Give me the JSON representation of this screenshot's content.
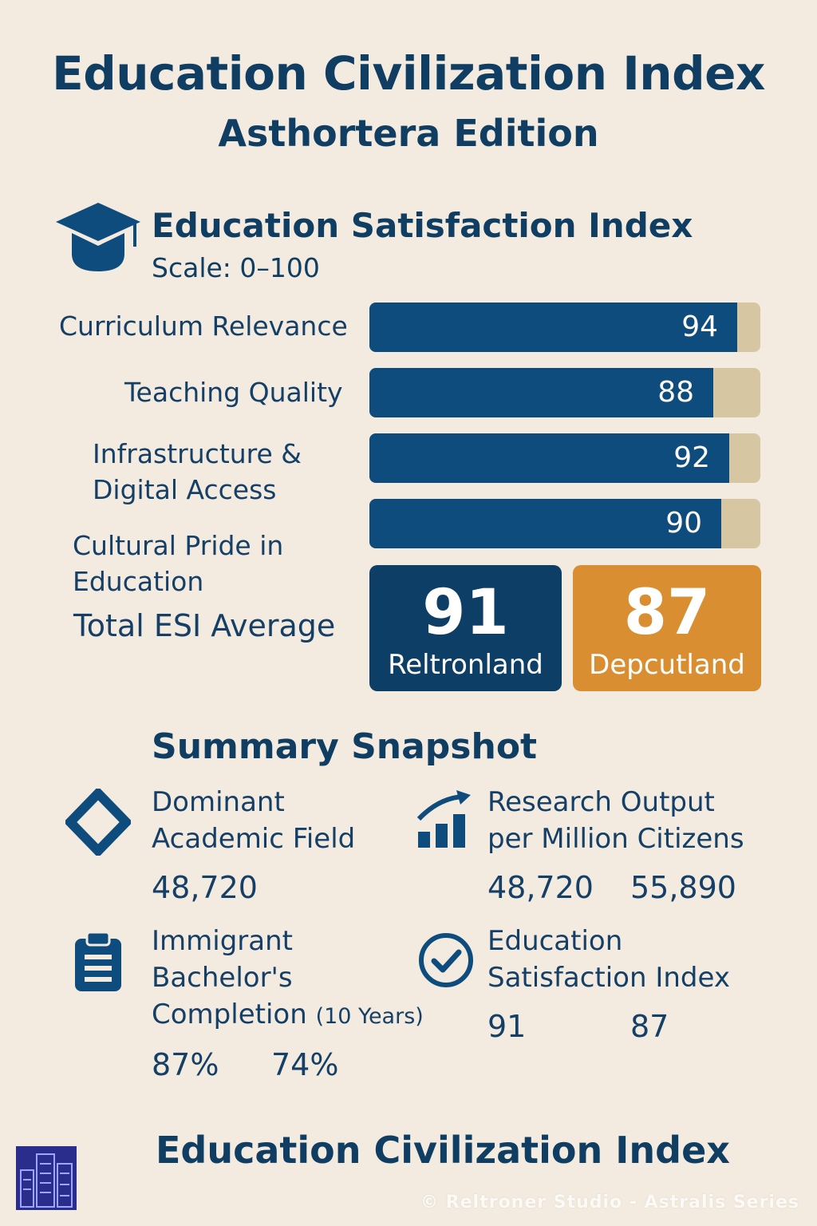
{
  "header": {
    "title": "Education Civilization Index",
    "subtitle": "Asthortera Edition"
  },
  "section": {
    "title": "Education Satisfaction Index",
    "scale_label": "Scale: 0–100",
    "icon": "graduation-cap-icon"
  },
  "chart_data": {
    "type": "bar",
    "orientation": "horizontal",
    "categories": [
      "Curriculum Relevance",
      "Teaching Quality",
      "Infrastructure & Digital Access",
      "Cultural Pride in Education"
    ],
    "values": [
      94,
      88,
      92,
      90
    ],
    "xlim": [
      0,
      100
    ],
    "colors": {
      "bar": "#0e4c7e",
      "track": "#d6c6a2"
    }
  },
  "rows": [
    {
      "label_lines": [
        "Curriculum Relevance"
      ],
      "value": "94"
    },
    {
      "label_lines": [
        "Teaching Quality"
      ],
      "value": "88"
    },
    {
      "label_lines": [
        "Infrastructure &",
        "Digital Access"
      ],
      "value": "92"
    },
    {
      "label_lines": [
        "Cultural Pride in",
        "Education"
      ],
      "value": "90"
    }
  ],
  "total": {
    "label": "Total ESI Average",
    "boxes": [
      {
        "value": "91",
        "name": "Reltronland",
        "color": "#0d3f66"
      },
      {
        "value": "87",
        "name": "Depcutland",
        "color": "#d98f31"
      }
    ]
  },
  "summary": {
    "title": "Summary Snapshot",
    "items": [
      {
        "icon": "diamond-icon",
        "label_lines": [
          "Dominant",
          "Academic Field"
        ],
        "note": "",
        "values": [
          "48,720"
        ]
      },
      {
        "icon": "growth-chart-icon",
        "label_lines": [
          "Research Output",
          "per Million Citizens"
        ],
        "note": "",
        "values": [
          "48,720",
          "55,890"
        ]
      },
      {
        "icon": "clipboard-icon",
        "label_lines": [
          "Immigrant",
          "Bachelor's",
          "Completion"
        ],
        "note": "(10 Years)",
        "values": [
          "87%",
          "74%"
        ]
      },
      {
        "icon": "check-circle-icon",
        "label_lines": [
          "Education",
          "Satisfaction Index"
        ],
        "note": "",
        "values": [
          "91",
          "87"
        ]
      }
    ]
  },
  "footer": {
    "title": "Education Civilization Index",
    "logo_icon": "city-buildings-icon",
    "copyright": "© Reltroner Studio - Astralis Series"
  }
}
